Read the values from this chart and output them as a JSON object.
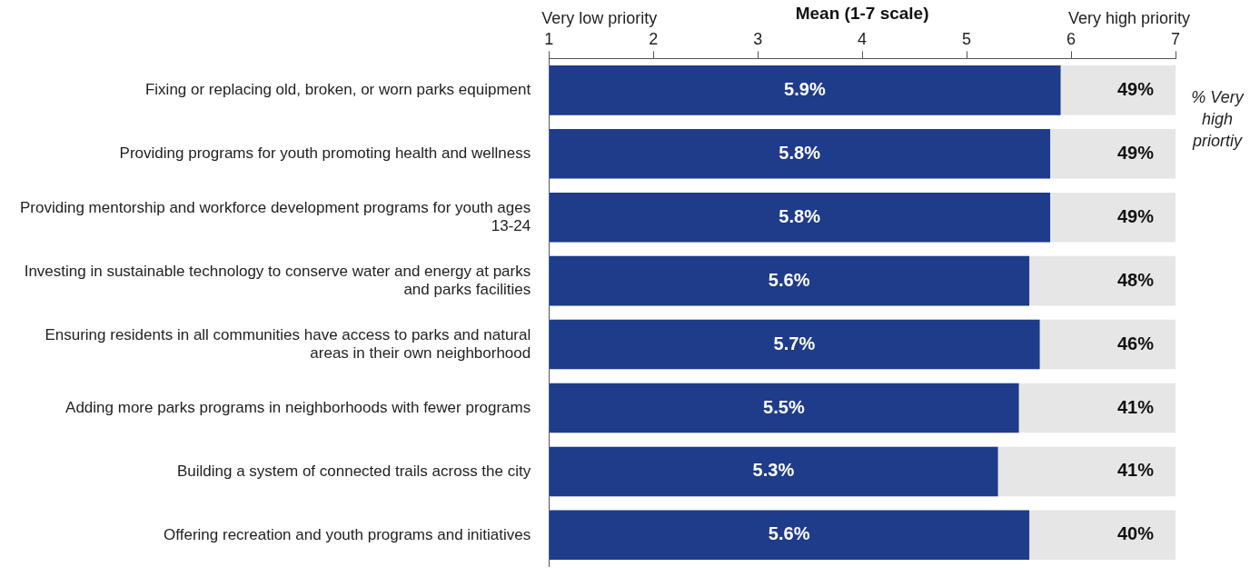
{
  "chart_data": {
    "type": "bar",
    "orientation": "horizontal",
    "xlabel": "Mean (1-7 scale)",
    "categories": [
      "Fixing or replacing old, broken, or worn parks equipment",
      "Providing programs for youth promoting health and wellness",
      "Providing mentorship and workforce development programs for youth ages 13-24",
      "Investing in sustainable technology to conserve water and energy at parks and parks facilities",
      "Ensuring residents in all communities have access to parks and natural areas in their own neighborhood",
      "Adding more parks programs in neighborhoods with fewer programs",
      "Building a system of connected trails across the city",
      "Offering recreation and youth programs and initiatives"
    ],
    "values": [
      5.9,
      5.8,
      5.8,
      5.6,
      5.7,
      5.5,
      5.3,
      5.6
    ],
    "value_labels": [
      "5.9%",
      "5.8%",
      "5.8%",
      "5.6%",
      "5.7%",
      "5.5%",
      "5.3%",
      "5.6%"
    ],
    "color": "#1f3c8a",
    "xlim": [
      1,
      7
    ],
    "xticks": [
      1,
      2,
      3,
      4,
      5,
      6,
      7
    ],
    "grid": false,
    "legend": false,
    "annotations": [
      "Very low priority",
      "Very high priority",
      "% Very high priortiy",
      "49%",
      "49%",
      "49%",
      "48%",
      "46%",
      "41%",
      "41%",
      "40%"
    ]
  }
}
